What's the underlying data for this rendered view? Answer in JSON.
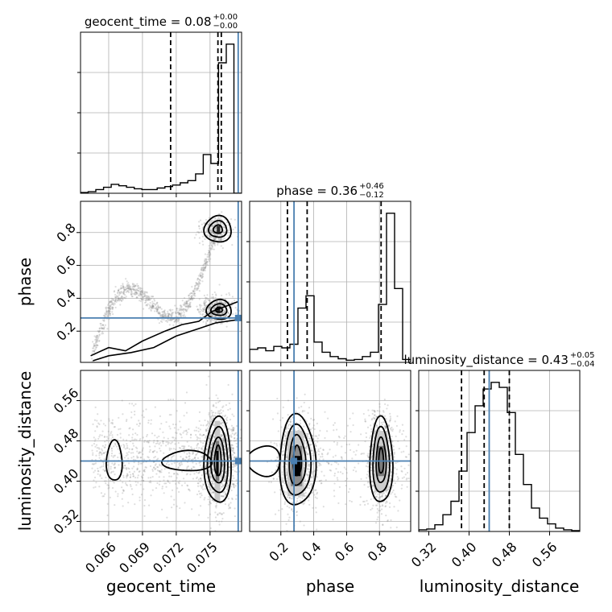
{
  "chart_data": {
    "type": "corner",
    "parameters": [
      "geocent_time",
      "phase",
      "luminosity_distance"
    ],
    "titles": [
      {
        "text": "geocent_time = 0.08",
        "plus": "+0.00",
        "minus": "−0.00"
      },
      {
        "text": "phase = 0.36",
        "plus": "+0.46",
        "minus": "−0.12"
      },
      {
        "text": "luminosity_distance = 0.43",
        "plus": "+0.05",
        "minus": "−0.04"
      }
    ],
    "ranges": [
      [
        0.0635,
        0.0778
      ],
      [
        0.01,
        0.99
      ],
      [
        0.3,
        0.62
      ]
    ],
    "truths": [
      0.0775,
      0.28,
      0.44
    ],
    "quantiles": [
      [
        0.0715,
        0.0757,
        0.076
      ],
      [
        0.24,
        0.81,
        0.36
      ],
      [
        0.385,
        0.43,
        0.48
      ]
    ],
    "xticks": [
      {
        "values": [
          0.066,
          0.069,
          0.072,
          0.075
        ],
        "labels": [
          "0.066",
          "0.069",
          "0.072",
          "0.075"
        ]
      },
      {
        "values": [
          0.2,
          0.4,
          0.6,
          0.8
        ],
        "labels": [
          "0.2",
          "0.4",
          "0.6",
          "0.8"
        ]
      },
      {
        "values": [
          0.32,
          0.4,
          0.48,
          0.56
        ],
        "labels": [
          "0.32",
          "0.40",
          "0.48",
          "0.56"
        ]
      }
    ],
    "histograms": [
      [
        1,
        2,
        5,
        8,
        12,
        10,
        8,
        6,
        5,
        5,
        7,
        9,
        11,
        14,
        17,
        26,
        52,
        40,
        175,
        200,
        0
      ],
      [
        18,
        20,
        16,
        22,
        20,
        25,
        75,
        92,
        28,
        14,
        8,
        5,
        3,
        4,
        8,
        14,
        80,
        206,
        102,
        4
      ],
      [
        2,
        3,
        8,
        20,
        36,
        72,
        118,
        150,
        170,
        178,
        172,
        142,
        92,
        56,
        28,
        16,
        9,
        4,
        2,
        1
      ]
    ],
    "grid": true
  }
}
